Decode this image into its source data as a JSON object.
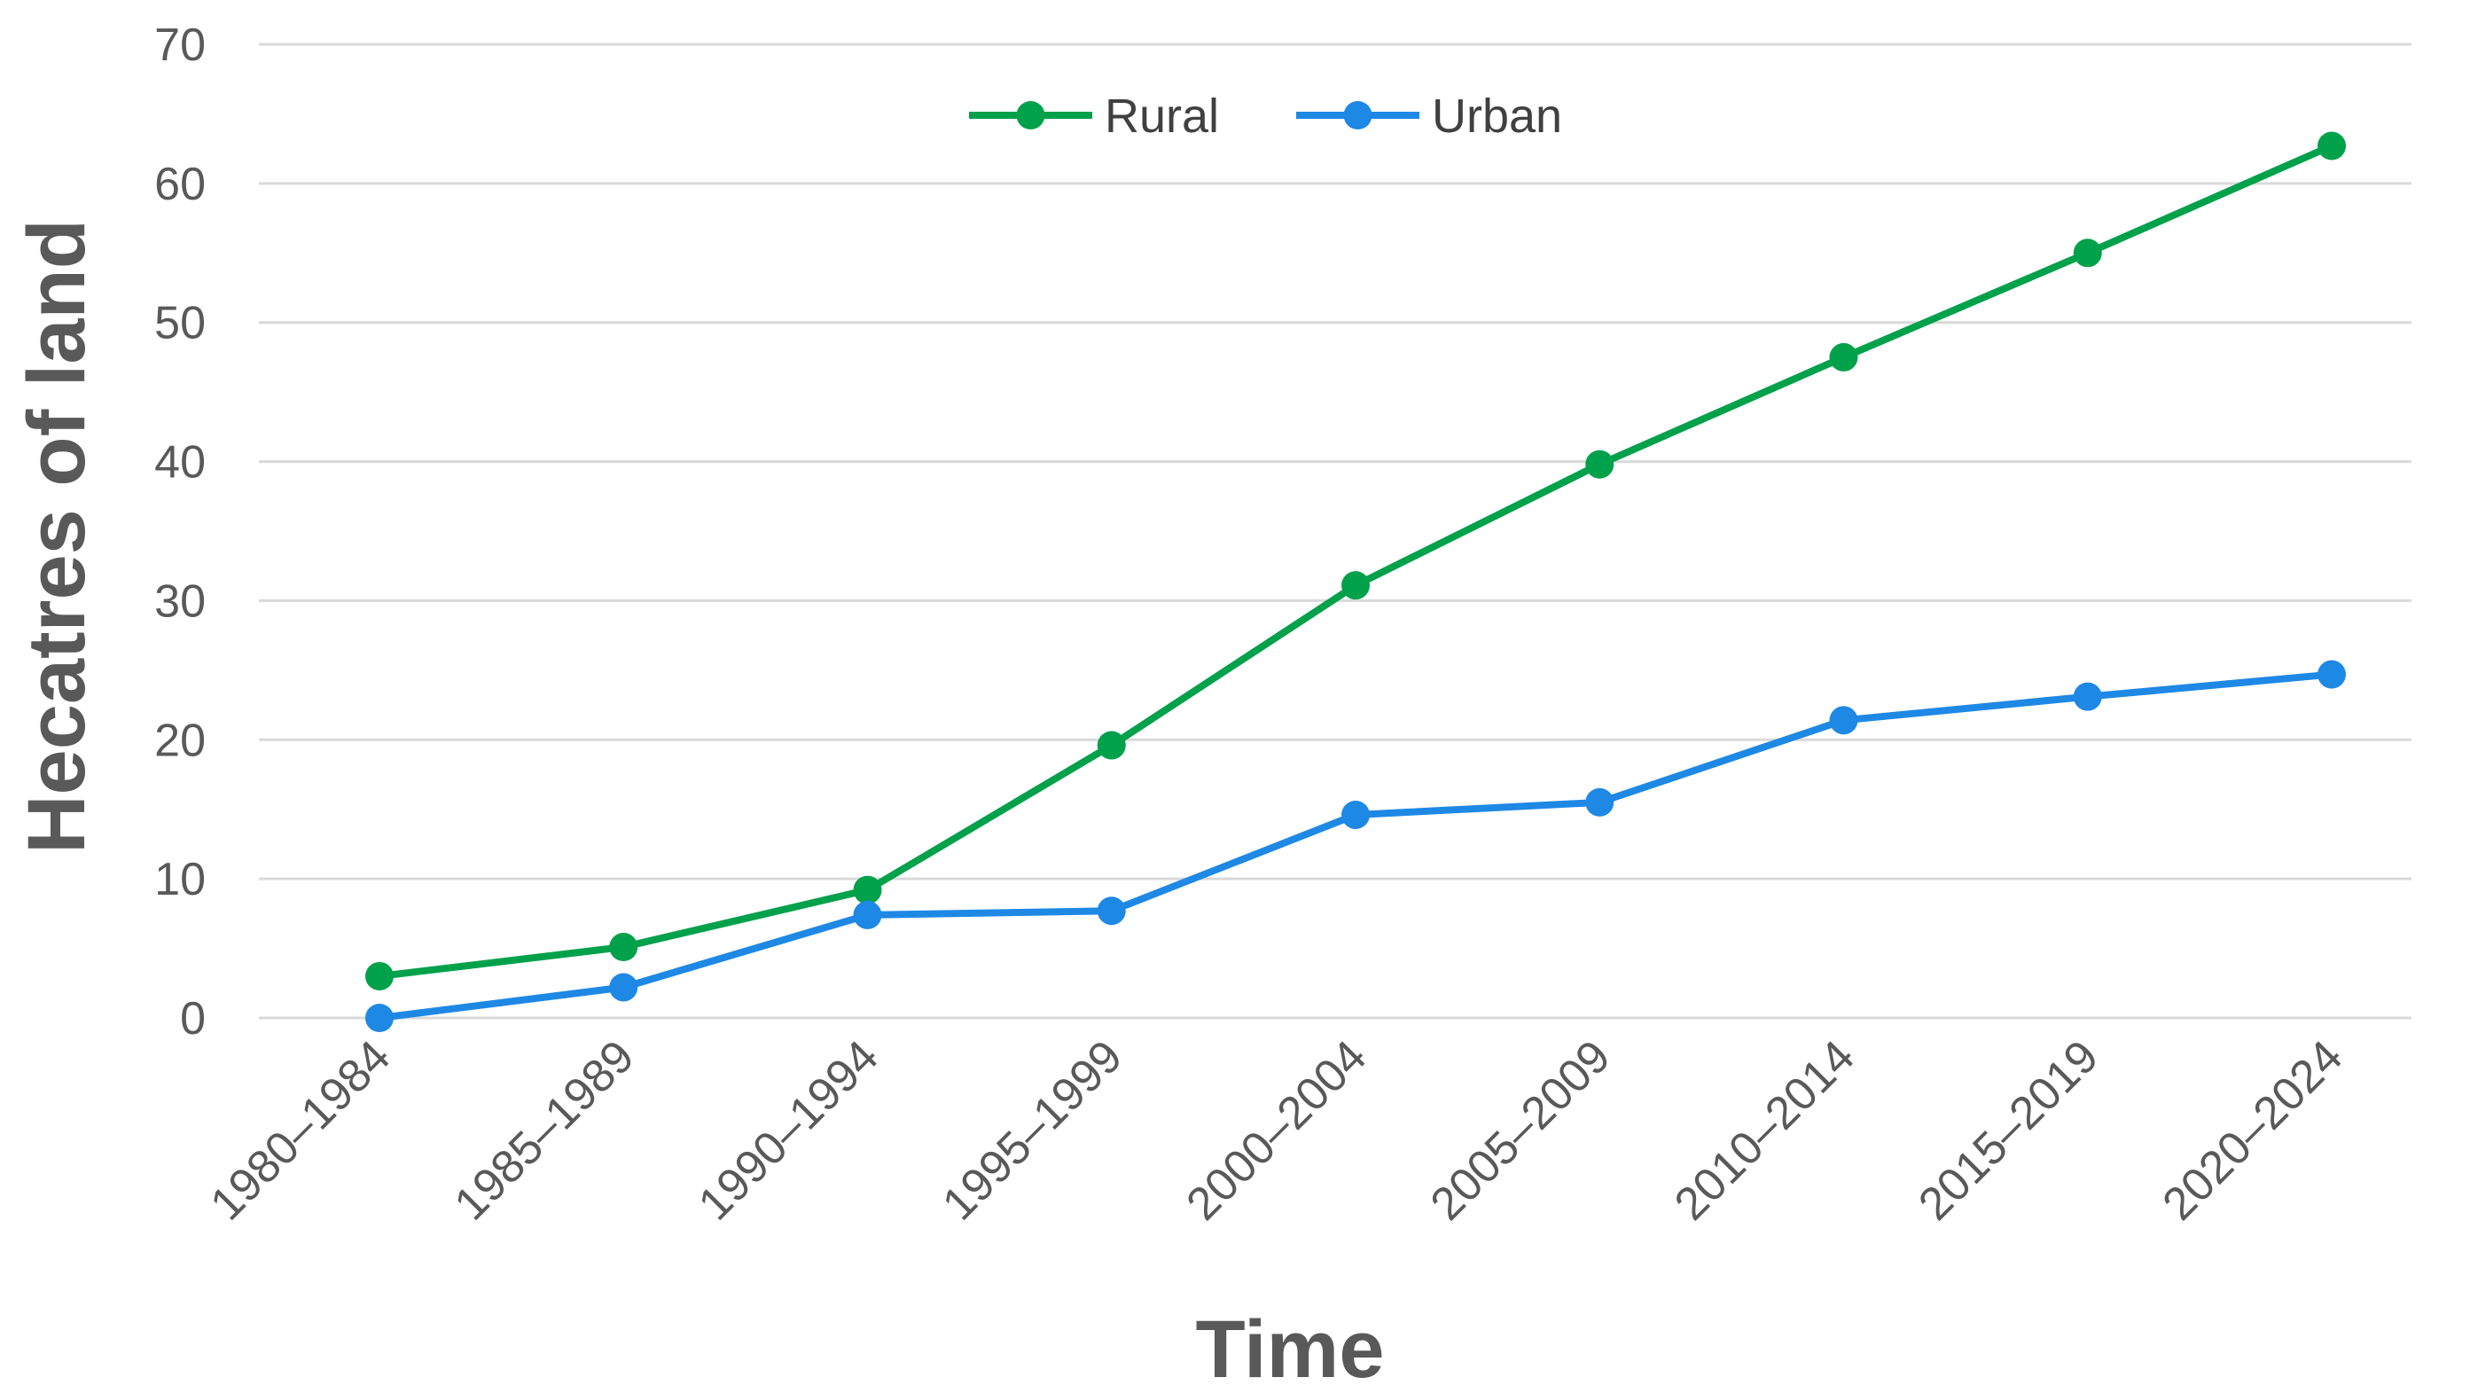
{
  "chart_data": {
    "type": "line",
    "title": "",
    "xlabel": "Time",
    "ylabel": "Hecatres of land",
    "ylim": [
      0,
      70
    ],
    "yticks": [
      0,
      10,
      20,
      30,
      40,
      50,
      60,
      70
    ],
    "grid": true,
    "legend_position": "top-center",
    "categories": [
      "1980–1984",
      "1985–1989",
      "1990–1994",
      "1995–1999",
      "2000–2004",
      "2005–2009",
      "2010–2014",
      "2015–2019",
      "2020–2024"
    ],
    "series": [
      {
        "name": "Rural",
        "color": "#00A14B",
        "values": [
          3.0,
          5.1,
          9.2,
          19.6,
          31.1,
          39.8,
          47.5,
          55.0,
          62.7
        ]
      },
      {
        "name": "Urban",
        "color": "#1E88E5",
        "values": [
          0.0,
          2.2,
          7.4,
          7.7,
          14.6,
          15.5,
          21.4,
          23.1,
          24.7
        ]
      }
    ]
  }
}
